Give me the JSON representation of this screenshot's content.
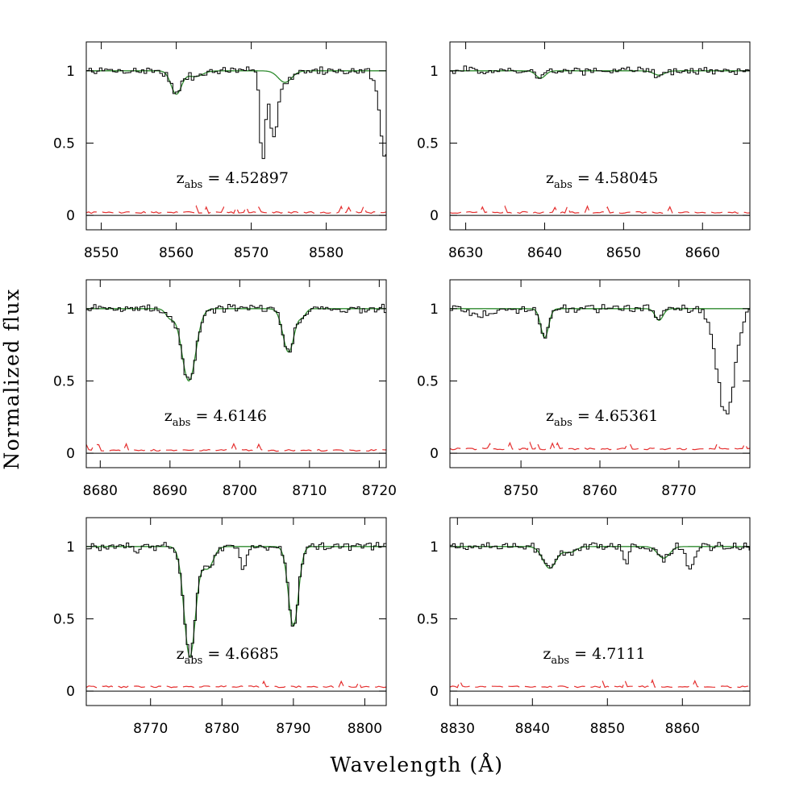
{
  "figure": {
    "ylabel": "Normalized flux",
    "xlabel": "Wavelength (Å)",
    "colors": {
      "data": "#000000",
      "model": "#2e8b2e",
      "error": "#e53030",
      "zero": "#000000"
    }
  },
  "chart_data": [
    {
      "type": "line",
      "xlim": [
        8548,
        8588
      ],
      "ylim": [
        -0.1,
        1.2
      ],
      "xticks": [
        8550,
        8560,
        8570,
        8580
      ],
      "yticks": [
        0,
        0.5,
        1
      ],
      "ytick_labels": [
        "0",
        "0.5",
        "1"
      ],
      "z_value": "4.52897",
      "lines": [
        {
          "center": 8560.0,
          "depth": 0.16,
          "width": 0.7
        },
        {
          "center": 8562.5,
          "depth": 0.04,
          "width": 1.0
        },
        {
          "center": 8574.5,
          "depth": 0.08,
          "width": 0.9
        }
      ],
      "contaminants": [
        {
          "center": 8571.5,
          "depth": 0.62,
          "width": 0.35
        },
        {
          "center": 8573.0,
          "depth": 0.45,
          "width": 0.5
        },
        {
          "center": 8588.0,
          "depth": 0.6,
          "width": 0.8
        }
      ],
      "error_level": 0.02
    },
    {
      "type": "line",
      "xlim": [
        8628,
        8666
      ],
      "ylim": [
        -0.1,
        1.2
      ],
      "xticks": [
        8630,
        8640,
        8650,
        8660
      ],
      "yticks": [
        0,
        0.5,
        1
      ],
      "ytick_labels": [
        "0",
        "0.5",
        "1"
      ],
      "z_value": "4.58045",
      "lines": [
        {
          "center": 8639.5,
          "depth": 0.05,
          "width": 0.6
        },
        {
          "center": 8654.5,
          "depth": 0.03,
          "width": 0.7
        }
      ],
      "contaminants": [],
      "error_level": 0.02
    },
    {
      "type": "line",
      "xlim": [
        8678,
        8721
      ],
      "ylim": [
        -0.1,
        1.2
      ],
      "xticks": [
        8680,
        8690,
        8700,
        8710,
        8720
      ],
      "yticks": [
        0,
        0.5,
        1
      ],
      "ytick_labels": [
        "0",
        "0.5",
        "1"
      ],
      "z_value": "4.6146",
      "lines": [
        {
          "center": 8692.7,
          "depth": 0.5,
          "width": 1.0
        },
        {
          "center": 8690.0,
          "depth": 0.06,
          "width": 0.6
        },
        {
          "center": 8707.0,
          "depth": 0.3,
          "width": 0.8
        },
        {
          "center": 8709.0,
          "depth": 0.05,
          "width": 0.5
        }
      ],
      "contaminants": [],
      "error_level": 0.02
    },
    {
      "type": "line",
      "xlim": [
        8741,
        8779
      ],
      "ylim": [
        -0.1,
        1.2
      ],
      "xticks": [
        8750,
        8760,
        8770
      ],
      "yticks": [
        0,
        0.5,
        1
      ],
      "ytick_labels": [
        "0",
        "0.5",
        "1"
      ],
      "z_value": "4.65361",
      "lines": [
        {
          "center": 8753.0,
          "depth": 0.2,
          "width": 0.5
        },
        {
          "center": 8767.5,
          "depth": 0.08,
          "width": 0.5
        }
      ],
      "contaminants": [
        {
          "center": 8776.0,
          "depth": 0.74,
          "width": 1.1
        },
        {
          "center": 8745.0,
          "depth": 0.05,
          "width": 1.2
        }
      ],
      "error_level": 0.03
    },
    {
      "type": "line",
      "xlim": [
        8761,
        8803
      ],
      "ylim": [
        -0.1,
        1.2
      ],
      "xticks": [
        8770,
        8780,
        8790,
        8800
      ],
      "yticks": [
        0,
        0.5,
        1
      ],
      "ytick_labels": [
        "0",
        "0.5",
        "1"
      ],
      "z_value": "4.6685",
      "lines": [
        {
          "center": 8775.5,
          "depth": 0.76,
          "width": 0.8
        },
        {
          "center": 8778.0,
          "depth": 0.15,
          "width": 0.8
        },
        {
          "center": 8790.0,
          "depth": 0.55,
          "width": 0.7
        }
      ],
      "contaminants": [
        {
          "center": 8783.0,
          "depth": 0.18,
          "width": 0.4
        },
        {
          "center": 8768.0,
          "depth": 0.05,
          "width": 0.5
        }
      ],
      "error_level": 0.03
    },
    {
      "type": "line",
      "xlim": [
        8829,
        8869
      ],
      "ylim": [
        -0.1,
        1.2
      ],
      "xticks": [
        8830,
        8840,
        8850,
        8860
      ],
      "yticks": [
        0,
        0.5,
        1
      ],
      "ytick_labels": [
        "0",
        "0.5",
        "1"
      ],
      "z_value": "4.7111",
      "lines": [
        {
          "center": 8842.3,
          "depth": 0.15,
          "width": 0.9
        },
        {
          "center": 8845.0,
          "depth": 0.04,
          "width": 0.8
        },
        {
          "center": 8857.5,
          "depth": 0.08,
          "width": 0.8
        }
      ],
      "contaminants": [
        {
          "center": 8861.0,
          "depth": 0.14,
          "width": 0.6
        },
        {
          "center": 8852.5,
          "depth": 0.1,
          "width": 0.4
        }
      ],
      "error_level": 0.03
    }
  ]
}
